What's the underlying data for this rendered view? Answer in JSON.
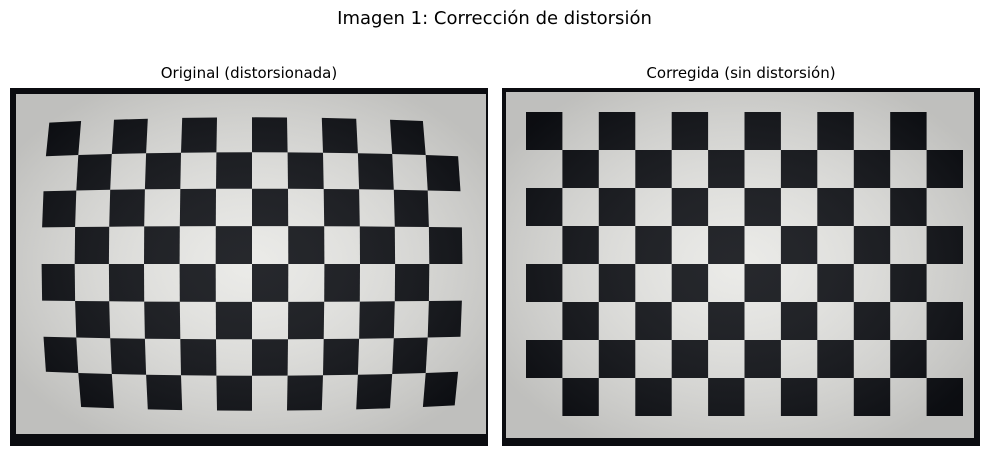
{
  "figure": {
    "title": "Imagen 1: Corrección de distorsión"
  },
  "panels": [
    {
      "title": "Original (distorsionada)",
      "image": "checkerboard-photo-distorted"
    },
    {
      "title": "Corregida (sin distorsión)",
      "image": "checkerboard-photo-undistorted"
    }
  ],
  "colors": {
    "background": "#ffffff",
    "dark_square": "#0e1015",
    "light_square": "#e9e9e6",
    "screen_bezel": "#0b0c10"
  },
  "checkerboard": {
    "columns": 12,
    "rows": 8
  }
}
